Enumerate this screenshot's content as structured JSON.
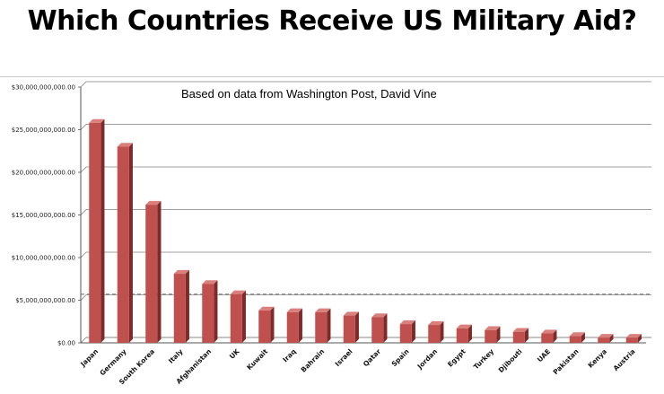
{
  "title": "Which Countries Receive US Military Aid?",
  "chart_data": {
    "type": "bar",
    "annotation": "Based on data from Washington Post, David Vine",
    "categories": [
      "Japan",
      "Germany",
      "South Korea",
      "Italy",
      "Afghanistan",
      "UK",
      "Kuwait",
      "Iraq",
      "Bahrain",
      "Israel",
      "Qatar",
      "Spain",
      "Jordan",
      "Egypt",
      "Turkey",
      "Djibouti",
      "UAE",
      "Pakistan",
      "Kenya",
      "Austria"
    ],
    "values": [
      25800000000,
      23000000000,
      16200000000,
      8100000000,
      6900000000,
      5700000000,
      3800000000,
      3600000000,
      3600000000,
      3200000000,
      3000000000,
      2200000000,
      2100000000,
      1700000000,
      1500000000,
      1300000000,
      1100000000,
      800000000,
      600000000,
      600000000
    ],
    "yticks": [
      "$0.00",
      "$5,000,000,000.00",
      "$10,000,000,000.00",
      "$15,000,000,000.00",
      "$20,000,000,000.00",
      "$25,000,000,000.00",
      "$30,000,000,000.00"
    ],
    "ylim": [
      0,
      30000000000
    ],
    "reference_line": 5700000000,
    "grid": true,
    "colors": {
      "bar_front": "#c0504d",
      "bar_side": "#7e2a28",
      "bar_top": "#d9807d",
      "grid": "#808080",
      "reference": "#666666"
    }
  }
}
